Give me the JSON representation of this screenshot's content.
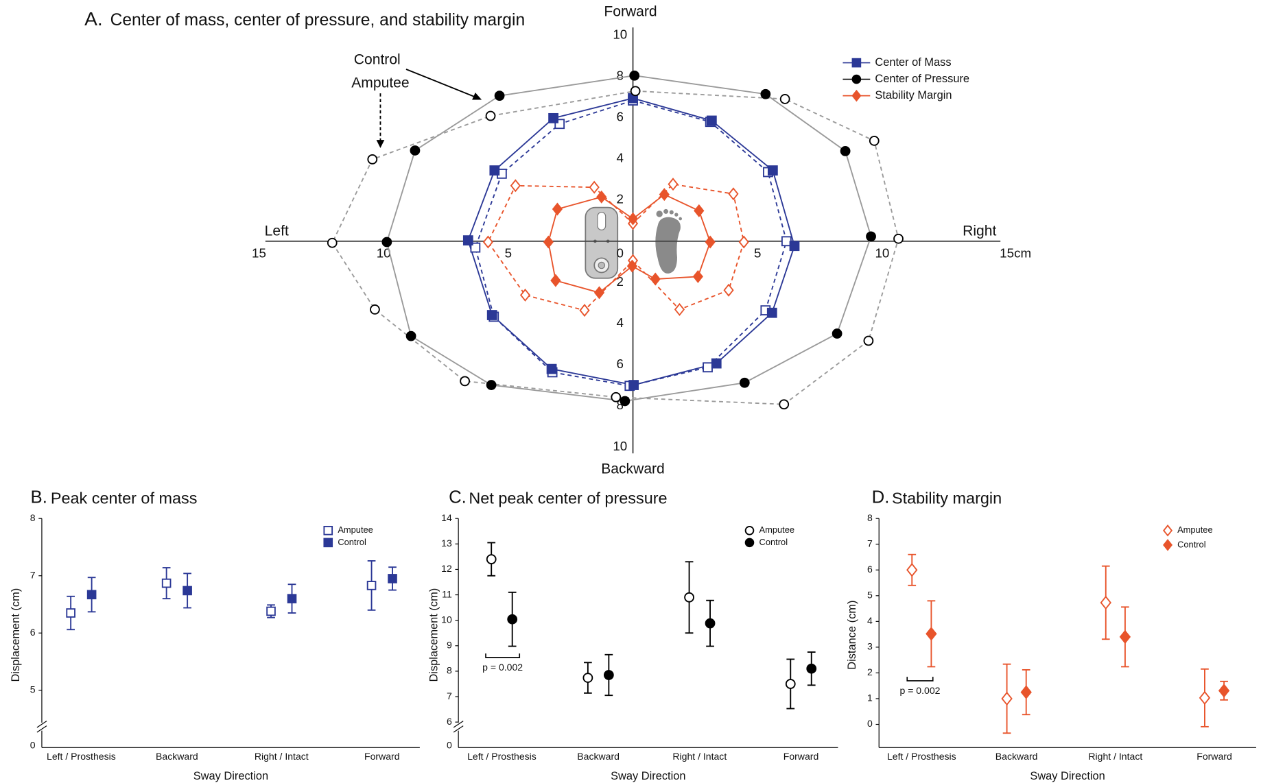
{
  "chart_data": [
    {
      "type": "line",
      "panel": "A.",
      "title": "Center of mass, center of pressure, and stability margin",
      "annotations": {
        "forward": "Forward",
        "backward": "Backward",
        "left": "Left",
        "right": "Right",
        "control": "Control",
        "amputee": "Amputee"
      },
      "x_unit": "cm",
      "xlim": [
        -15,
        15
      ],
      "ylim": [
        -10,
        10
      ],
      "xticks": [
        {
          "value": -15,
          "label": "15"
        },
        {
          "value": -10,
          "label": "10"
        },
        {
          "value": -5,
          "label": "5"
        },
        0,
        5,
        10,
        15
      ],
      "yticks": [
        {
          "value": -10,
          "label": "10"
        },
        {
          "value": -8,
          "label": "8"
        },
        {
          "value": -6,
          "label": "6"
        },
        {
          "value": -4,
          "label": "4"
        },
        {
          "value": -2,
          "label": "2"
        },
        2,
        4,
        6,
        8,
        10
      ],
      "series": [
        {
          "name": "Center of Mass",
          "color": "#2b3896",
          "marker": "square",
          "control": {
            "x": [
              0,
              3.16,
              5.61,
              6.48,
              5.58,
              3.35,
              0.03,
              -3.26,
              -5.65,
              -6.61,
              -5.55,
              -3.19
            ],
            "y": [
              6.95,
              5.86,
              3.44,
              -0.23,
              -3.48,
              -5.94,
              -6.99,
              -6.21,
              -3.59,
              0.04,
              3.44,
              5.98
            ]
          },
          "amputee": {
            "x": [
              0,
              3.1,
              5.42,
              6.16,
              5.32,
              3.0,
              -0.13,
              -3.23,
              -5.58,
              -6.32,
              -5.26,
              -2.94
            ],
            "y": [
              6.84,
              5.8,
              3.36,
              0,
              -3.36,
              -6.13,
              -7.03,
              -6.37,
              -3.67,
              -0.31,
              3.28,
              5.7
            ]
          }
        },
        {
          "name": "Center of Pressure",
          "color": "#000000",
          "line_color": "#9a9a9a",
          "marker": "circle",
          "control": {
            "x": [
              0.06,
              5.32,
              8.52,
              9.55,
              8.19,
              4.48,
              -0.32,
              -5.68,
              -8.9,
              -9.87,
              -8.74,
              -5.35
            ],
            "y": [
              8.05,
              7.15,
              4.38,
              0.23,
              -4.49,
              -6.88,
              -7.77,
              -6.99,
              -4.61,
              -0.04,
              4.41,
              7.07
            ]
          },
          "amputee": {
            "x": [
              0.1,
              6.1,
              9.68,
              10.65,
              9.45,
              6.06,
              -0.68,
              -6.74,
              -10.35,
              -12.06,
              -10.45,
              -5.71
            ],
            "y": [
              7.3,
              6.91,
              4.88,
              0.12,
              -4.84,
              -7.93,
              -7.58,
              -6.8,
              -3.32,
              -0.08,
              3.98,
              6.09
            ]
          }
        },
        {
          "name": "Stability Margin",
          "color": "#e8542b",
          "marker": "diamond",
          "control": {
            "x": [
              0,
              1.26,
              2.65,
              3.1,
              2.61,
              0.9,
              -0.03,
              -1.35,
              -3.1,
              -3.39,
              -3.03,
              -1.26
            ],
            "y": [
              1.09,
              2.27,
              1.48,
              -0.04,
              -1.72,
              -1.84,
              -1.21,
              -2.5,
              -1.91,
              -0.04,
              1.56,
              2.15
            ]
          },
          "amputee": {
            "x": [
              0,
              1.61,
              4.03,
              4.45,
              3.84,
              1.87,
              0,
              -1.94,
              -4.32,
              -5.81,
              -4.71,
              -1.55
            ],
            "y": [
              0.86,
              2.77,
              2.3,
              -0.04,
              -2.38,
              -3.32,
              -0.94,
              -3.36,
              -2.62,
              -0.04,
              2.7,
              2.62
            ]
          }
        }
      ]
    },
    {
      "type": "errorbar",
      "panel": "B.",
      "title": "Peak center of mass",
      "xlabel": "Sway Direction",
      "ylabel": "Displacement (cm)",
      "categories": [
        "Left / Prosthesis",
        "Backward",
        "Right / Intact",
        "Forward"
      ],
      "ylim": [
        4,
        8
      ],
      "yticks": [
        5,
        6,
        7,
        8
      ],
      "y_break_tick": 0,
      "series": [
        {
          "name": "Amputee",
          "color": "#2b3896",
          "marker": "square",
          "filled": false,
          "values": [
            6.35,
            6.87,
            6.38,
            6.83
          ],
          "errors": [
            0.29,
            0.27,
            0.11,
            0.43
          ]
        },
        {
          "name": "Control",
          "color": "#2b3896",
          "marker": "square",
          "filled": true,
          "values": [
            6.67,
            6.74,
            6.6,
            6.95
          ],
          "errors": [
            0.3,
            0.3,
            0.25,
            0.2
          ]
        }
      ]
    },
    {
      "type": "errorbar",
      "panel": "C.",
      "title": "Net peak center of pressure",
      "xlabel": "Sway Direction",
      "ylabel": "Displacement (cm)",
      "categories": [
        "Left / Prosthesis",
        "Backward",
        "Right / Intact",
        "Forward"
      ],
      "ylim": [
        5,
        14
      ],
      "yticks": [
        6,
        7,
        8,
        9,
        10,
        11,
        12,
        13,
        14
      ],
      "y_break_tick": 0,
      "annotation": "p = 0.002",
      "series": [
        {
          "name": "Amputee",
          "color": "#000000",
          "marker": "circle",
          "filled": false,
          "values": [
            12.4,
            7.74,
            10.9,
            7.5
          ],
          "errors": [
            0.65,
            0.6,
            1.4,
            0.97
          ]
        },
        {
          "name": "Control",
          "color": "#000000",
          "marker": "circle",
          "filled": true,
          "values": [
            10.04,
            7.85,
            9.88,
            8.1
          ],
          "errors": [
            1.06,
            0.8,
            0.9,
            0.65
          ]
        }
      ]
    },
    {
      "type": "errorbar",
      "panel": "D.",
      "title": "Stability margin",
      "xlabel": "Sway Direction",
      "ylabel": "Distance (cm)",
      "categories": [
        "Left / Prosthesis",
        "Backward",
        "Right / Intact",
        "Forward"
      ],
      "ylim": [
        -0.9,
        8
      ],
      "yticks": [
        0,
        1,
        2,
        3,
        4,
        5,
        6,
        7,
        8
      ],
      "annotation": "p = 0.002",
      "series": [
        {
          "name": "Amputee",
          "color": "#e8542b",
          "marker": "diamond",
          "filled": false,
          "values": [
            6.0,
            1.0,
            4.73,
            1.03
          ],
          "errors": [
            0.6,
            1.34,
            1.42,
            1.12
          ]
        },
        {
          "name": "Control",
          "color": "#e8542b",
          "marker": "diamond",
          "filled": true,
          "values": [
            3.52,
            1.25,
            3.4,
            1.31
          ],
          "errors": [
            1.28,
            0.87,
            1.16,
            0.36
          ]
        }
      ]
    }
  ]
}
